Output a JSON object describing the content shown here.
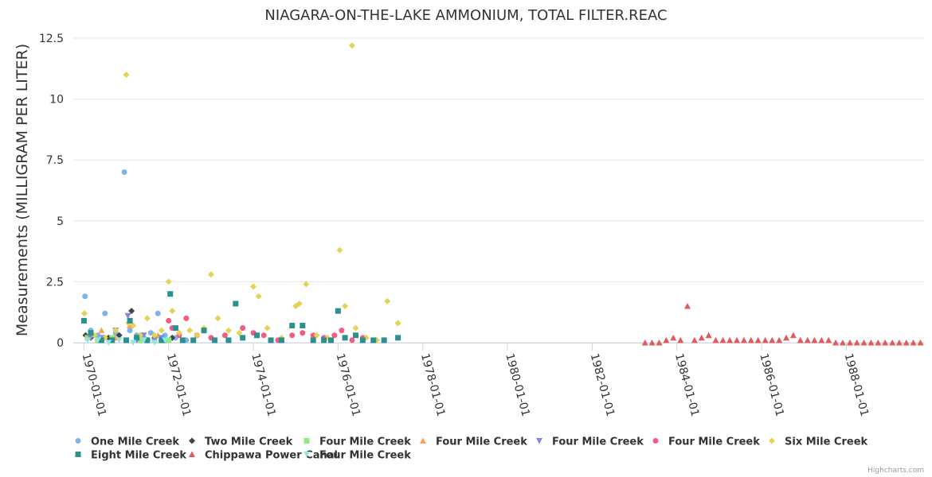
{
  "chart_data": {
    "type": "scatter",
    "title": "NIAGARA-ON-THE-LAKE AMMONIUM, TOTAL FILTER.REAC",
    "ylabel": "Measurements (MILLIGRAM PER LITER)",
    "xlabel": "",
    "x_axis": {
      "type": "datetime",
      "range": [
        "1969-10-01",
        "1989-11-01"
      ],
      "tick_labels": [
        "1970-01-01",
        "1972-01-01",
        "1974-01-01",
        "1976-01-01",
        "1978-01-01",
        "1980-01-01",
        "1982-01-01",
        "1984-01-01",
        "1986-01-01",
        "1988-01-01"
      ]
    },
    "y_axis": {
      "range": [
        0,
        12.5
      ],
      "ticks": [
        0,
        2.5,
        5,
        7.5,
        10,
        12.5
      ],
      "tick_labels": [
        "0",
        "2.5",
        "5",
        "7.5",
        "10",
        "12.5"
      ]
    },
    "grid": true,
    "legend_position": "bottom-left",
    "credit": "Highcharts.com",
    "series": [
      {
        "name": "One Mile Creek",
        "color": "#7cb5ec",
        "marker": "circle",
        "points": [
          [
            "1970-01-10",
            1.9
          ],
          [
            "1970-03-01",
            0.5
          ],
          [
            "1970-05-01",
            0.3
          ],
          [
            "1970-07-01",
            1.2
          ],
          [
            "1970-10-01",
            0.4
          ],
          [
            "1970-12-15",
            7.0
          ],
          [
            "1971-02-01",
            0.5
          ],
          [
            "1971-04-01",
            0.3
          ],
          [
            "1971-06-01",
            0.2
          ],
          [
            "1971-08-01",
            0.4
          ],
          [
            "1971-10-01",
            1.2
          ],
          [
            "1971-12-01",
            0.3
          ],
          [
            "1972-03-01",
            0.2
          ],
          [
            "1972-06-01",
            0.1
          ]
        ]
      },
      {
        "name": "Two Mile Creek",
        "color": "#434348",
        "marker": "diamond",
        "points": [
          [
            "1970-01-15",
            0.3
          ],
          [
            "1970-03-01",
            0.2
          ],
          [
            "1970-05-01",
            0.1
          ],
          [
            "1970-08-01",
            0.2
          ],
          [
            "1970-11-01",
            0.3
          ],
          [
            "1971-02-15",
            1.3
          ],
          [
            "1971-04-01",
            0.2
          ],
          [
            "1971-07-01",
            0.1
          ],
          [
            "1971-09-01",
            0.2
          ],
          [
            "1971-12-01",
            0.1
          ],
          [
            "1972-02-01",
            0.2
          ]
        ]
      },
      {
        "name": "Four Mile Creek",
        "color": "#90ed7d",
        "marker": "square",
        "points": [
          [
            "1970-02-01",
            0.2
          ],
          [
            "1970-05-01",
            0.1
          ],
          [
            "1970-09-01",
            0.2
          ],
          [
            "1971-01-01",
            0.1
          ],
          [
            "1971-05-01",
            0.1
          ],
          [
            "1971-09-01",
            0.1
          ],
          [
            "1972-01-01",
            0.1
          ]
        ]
      },
      {
        "name": "Four Mile Creek",
        "color": "#f7a35c",
        "marker": "triangle",
        "points": [
          [
            "1970-02-15",
            0.3
          ],
          [
            "1970-06-01",
            0.5
          ],
          [
            "1970-10-01",
            0.2
          ],
          [
            "1971-02-01",
            0.7
          ],
          [
            "1971-06-01",
            0.2
          ],
          [
            "1971-10-01",
            0.3
          ]
        ]
      },
      {
        "name": "Four Mile Creek",
        "color": "#8085e9",
        "marker": "triangle-down",
        "points": [
          [
            "1970-03-01",
            0.2
          ],
          [
            "1970-06-15",
            0.2
          ],
          [
            "1970-10-01",
            0.5
          ],
          [
            "1971-01-15",
            1.1
          ],
          [
            "1971-04-01",
            0.1
          ],
          [
            "1971-06-01",
            0.3
          ],
          [
            "1971-09-01",
            0.1
          ],
          [
            "1971-11-01",
            0.2
          ]
        ]
      },
      {
        "name": "Four Mile Creek",
        "color": "#f15c80",
        "marker": "circle",
        "points": [
          [
            "1972-01-01",
            0.9
          ],
          [
            "1972-02-01",
            0.6
          ],
          [
            "1972-04-01",
            0.3
          ],
          [
            "1972-06-01",
            1.0
          ],
          [
            "1972-09-01",
            0.3
          ],
          [
            "1972-11-01",
            0.5
          ],
          [
            "1973-01-01",
            0.2
          ],
          [
            "1973-05-01",
            0.3
          ],
          [
            "1973-10-01",
            0.6
          ],
          [
            "1974-01-01",
            0.4
          ],
          [
            "1974-04-01",
            0.3
          ],
          [
            "1974-08-01",
            0.1
          ],
          [
            "1974-12-01",
            0.3
          ],
          [
            "1975-03-01",
            0.4
          ],
          [
            "1975-06-01",
            0.3
          ],
          [
            "1975-09-01",
            0.2
          ],
          [
            "1975-12-01",
            0.3
          ],
          [
            "1976-02-01",
            0.5
          ],
          [
            "1976-05-01",
            0.1
          ],
          [
            "1976-08-01",
            0.2
          ]
        ]
      },
      {
        "name": "Six Mile Creek",
        "color": "#e4d354",
        "marker": "diamond",
        "points": [
          [
            "1970-01-05",
            1.2
          ],
          [
            "1970-04-01",
            0.3
          ],
          [
            "1970-07-01",
            0.2
          ],
          [
            "1970-10-01",
            0.5
          ],
          [
            "1971-01-01",
            11.0
          ],
          [
            "1971-01-20",
            0.8
          ],
          [
            "1971-03-01",
            0.7
          ],
          [
            "1971-05-01",
            0.3
          ],
          [
            "1971-07-01",
            1.0
          ],
          [
            "1971-09-01",
            0.3
          ],
          [
            "1971-11-01",
            0.5
          ],
          [
            "1972-01-01",
            2.5
          ],
          [
            "1972-02-01",
            1.3
          ],
          [
            "1972-04-01",
            0.4
          ],
          [
            "1972-07-01",
            0.5
          ],
          [
            "1972-09-01",
            0.3
          ],
          [
            "1972-11-01",
            0.6
          ],
          [
            "1973-01-01",
            2.8
          ],
          [
            "1973-03-01",
            1.0
          ],
          [
            "1973-06-01",
            0.5
          ],
          [
            "1973-09-01",
            0.4
          ],
          [
            "1974-01-01",
            2.3
          ],
          [
            "1974-02-15",
            1.9
          ],
          [
            "1974-05-01",
            0.6
          ],
          [
            "1974-09-01",
            0.2
          ],
          [
            "1975-01-01",
            1.5
          ],
          [
            "1975-02-01",
            1.6
          ],
          [
            "1975-04-01",
            2.4
          ],
          [
            "1975-07-01",
            0.3
          ],
          [
            "1975-10-01",
            0.2
          ],
          [
            "1976-01-15",
            3.8
          ],
          [
            "1976-03-01",
            1.5
          ],
          [
            "1976-05-01",
            12.2
          ],
          [
            "1976-06-01",
            0.6
          ],
          [
            "1976-09-01",
            0.2
          ],
          [
            "1976-12-01",
            0.1
          ],
          [
            "1977-03-01",
            1.7
          ],
          [
            "1977-06-01",
            0.8
          ]
        ]
      },
      {
        "name": "Eight Mile Creek",
        "color": "#2b908f",
        "marker": "square",
        "points": [
          [
            "1970-01-01",
            0.9
          ],
          [
            "1970-03-01",
            0.4
          ],
          [
            "1970-06-01",
            0.1
          ],
          [
            "1970-09-01",
            0.1
          ],
          [
            "1971-01-01",
            0.1
          ],
          [
            "1971-02-01",
            0.9
          ],
          [
            "1971-04-01",
            0.2
          ],
          [
            "1971-07-01",
            0.1
          ],
          [
            "1971-11-01",
            0.1
          ],
          [
            "1972-01-15",
            2.0
          ],
          [
            "1972-03-01",
            0.6
          ],
          [
            "1972-05-01",
            0.1
          ],
          [
            "1972-08-01",
            0.1
          ],
          [
            "1972-11-01",
            0.5
          ],
          [
            "1973-02-01",
            0.1
          ],
          [
            "1973-06-01",
            0.1
          ],
          [
            "1973-08-01",
            1.6
          ],
          [
            "1973-10-01",
            0.2
          ],
          [
            "1974-02-01",
            0.3
          ],
          [
            "1974-06-01",
            0.1
          ],
          [
            "1974-09-01",
            0.1
          ],
          [
            "1974-12-01",
            0.7
          ],
          [
            "1975-03-01",
            0.7
          ],
          [
            "1975-06-01",
            0.1
          ],
          [
            "1975-09-01",
            0.1
          ],
          [
            "1975-11-01",
            0.1
          ],
          [
            "1976-01-01",
            1.3
          ],
          [
            "1976-03-01",
            0.2
          ],
          [
            "1976-06-01",
            0.3
          ],
          [
            "1976-08-01",
            0.1
          ],
          [
            "1976-11-01",
            0.1
          ],
          [
            "1977-02-01",
            0.1
          ],
          [
            "1977-06-01",
            0.2
          ]
        ]
      },
      {
        "name": "Chippawa Power Canal",
        "color": "#e25a5a",
        "marker": "triangle",
        "points": [
          [
            "1983-04-01",
            0.0
          ],
          [
            "1983-06-01",
            0.0
          ],
          [
            "1983-08-01",
            0.0
          ],
          [
            "1983-10-01",
            0.1
          ],
          [
            "1983-12-01",
            0.2
          ],
          [
            "1984-02-01",
            0.1
          ],
          [
            "1984-04-01",
            1.5
          ],
          [
            "1984-06-01",
            0.1
          ],
          [
            "1984-08-01",
            0.2
          ],
          [
            "1984-10-01",
            0.3
          ],
          [
            "1984-12-01",
            0.1
          ],
          [
            "1985-02-01",
            0.1
          ],
          [
            "1985-04-01",
            0.1
          ],
          [
            "1985-06-01",
            0.1
          ],
          [
            "1985-08-01",
            0.1
          ],
          [
            "1985-10-01",
            0.1
          ],
          [
            "1985-12-01",
            0.1
          ],
          [
            "1986-02-01",
            0.1
          ],
          [
            "1986-04-01",
            0.1
          ],
          [
            "1986-06-01",
            0.1
          ],
          [
            "1986-08-01",
            0.2
          ],
          [
            "1986-10-01",
            0.3
          ],
          [
            "1986-12-01",
            0.1
          ],
          [
            "1987-02-01",
            0.1
          ],
          [
            "1987-04-01",
            0.1
          ],
          [
            "1987-06-01",
            0.1
          ],
          [
            "1987-08-01",
            0.1
          ],
          [
            "1987-10-01",
            0.0
          ],
          [
            "1987-12-01",
            0.0
          ],
          [
            "1988-02-01",
            0.0
          ],
          [
            "1988-04-01",
            0.0
          ],
          [
            "1988-06-01",
            0.0
          ],
          [
            "1988-08-01",
            0.0
          ],
          [
            "1988-10-01",
            0.0
          ],
          [
            "1988-12-01",
            0.0
          ],
          [
            "1989-02-01",
            0.0
          ],
          [
            "1989-04-01",
            0.0
          ],
          [
            "1989-06-01",
            0.0
          ],
          [
            "1989-08-01",
            0.0
          ],
          [
            "1989-10-01",
            0.0
          ]
        ]
      },
      {
        "name": "Four Mile Creek",
        "color": "#91e8e1",
        "marker": "triangle-down",
        "points": [
          [
            "1970-02-01",
            0.1
          ],
          [
            "1970-05-01",
            0.1
          ],
          [
            "1970-08-01",
            0.0
          ],
          [
            "1970-11-01",
            0.1
          ],
          [
            "1971-03-01",
            0.0
          ],
          [
            "1971-06-01",
            0.1
          ],
          [
            "1971-09-01",
            0.0
          ],
          [
            "1971-12-01",
            0.1
          ]
        ]
      }
    ]
  }
}
